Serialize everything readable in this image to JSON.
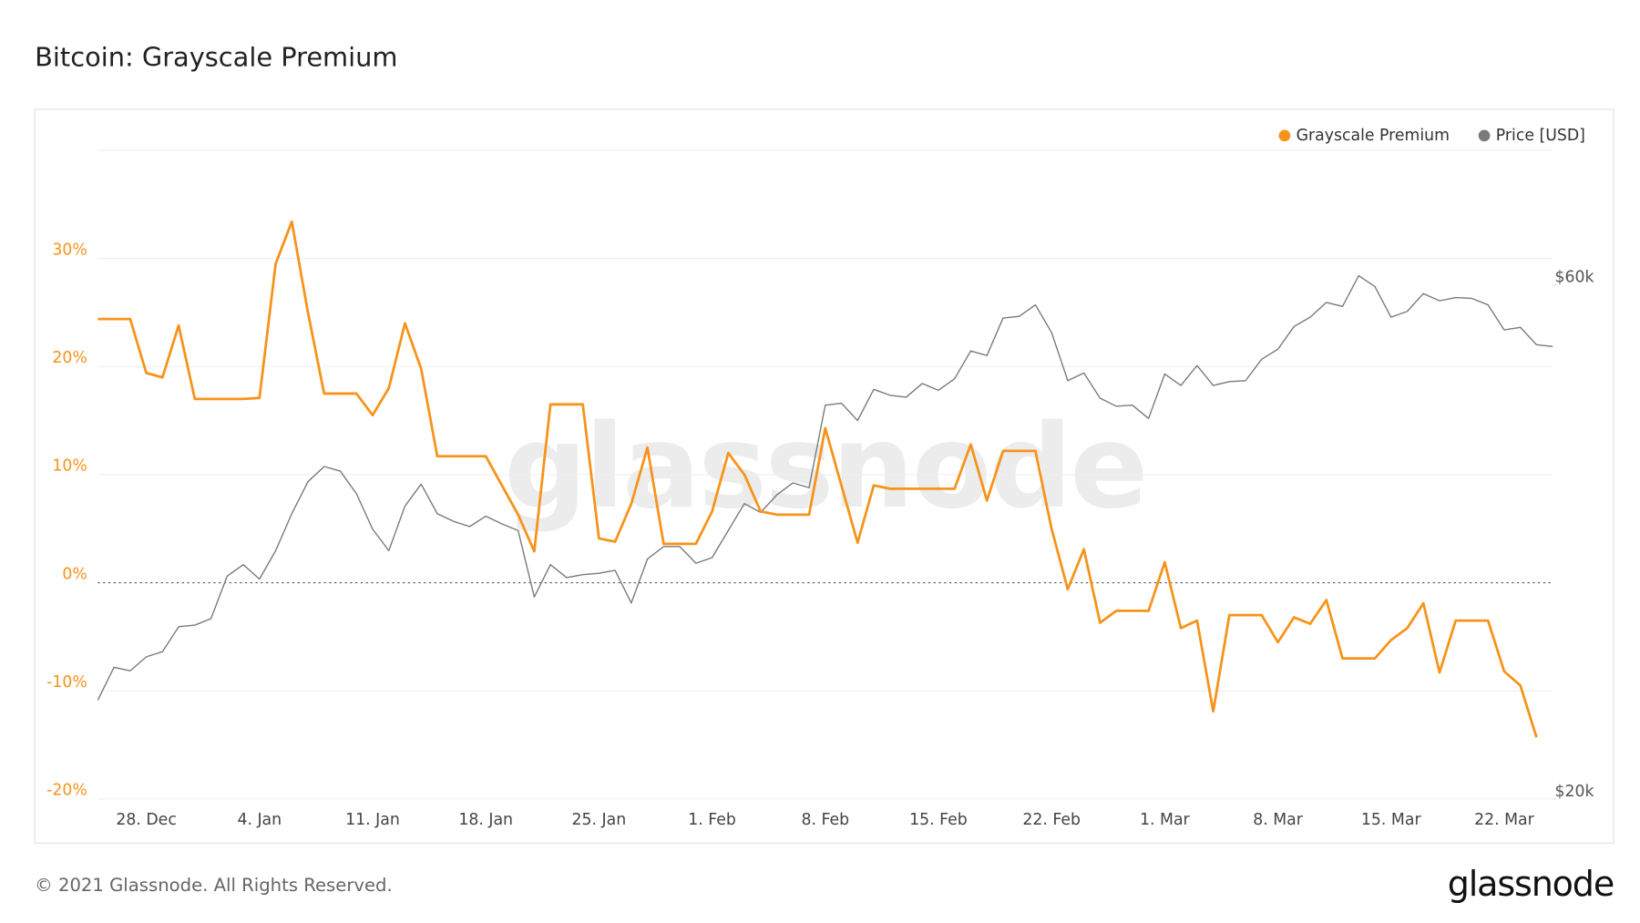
{
  "chart_data": {
    "type": "line",
    "title": "Bitcoin: Grayscale Premium",
    "watermark": "glassnode",
    "footer": "© 2021 Glassnode. All Rights Reserved.",
    "logo": "glassnode",
    "categories": [
      null,
      null,
      null,
      "28. Dec",
      null,
      null,
      null,
      null,
      null,
      null,
      "4. Jan",
      null,
      null,
      null,
      null,
      null,
      null,
      "11. Jan",
      null,
      null,
      null,
      null,
      null,
      null,
      "18. Jan",
      null,
      null,
      null,
      null,
      null,
      null,
      "25. Jan",
      null,
      null,
      null,
      null,
      null,
      null,
      "1. Feb",
      null,
      null,
      null,
      null,
      null,
      null,
      "8. Feb",
      null,
      null,
      null,
      null,
      null,
      null,
      "15. Feb",
      null,
      null,
      null,
      null,
      null,
      null,
      "22. Feb",
      null,
      null,
      null,
      null,
      null,
      null,
      "1. Mar",
      null,
      null,
      null,
      null,
      null,
      null,
      "8. Mar",
      null,
      null,
      null,
      null,
      null,
      null,
      "15. Mar",
      null,
      null,
      null,
      null,
      null,
      null,
      "22. Mar",
      null,
      null,
      null
    ],
    "series": [
      {
        "name": "Grayscale Premium",
        "color": "#f7931a",
        "values": [
          24.4,
          24.4,
          24.4,
          19.4,
          19.0,
          23.8,
          17.0,
          17.0,
          17.0,
          17.0,
          17.1,
          29.5,
          33.4,
          25.0,
          17.5,
          17.5,
          17.5,
          15.5,
          18.0,
          24.0,
          19.8,
          11.7,
          11.7,
          11.7,
          11.7,
          9.0,
          6.3,
          2.9,
          16.5,
          16.5,
          16.5,
          4.1,
          3.8,
          7.3,
          12.5,
          3.6,
          3.6,
          3.6,
          6.6,
          12.0,
          10.0,
          6.6,
          6.3,
          6.3,
          6.3,
          14.3,
          9.0,
          3.7,
          9.0,
          8.7,
          8.7,
          8.7,
          8.7,
          8.7,
          12.8,
          7.6,
          12.2,
          12.2,
          12.2,
          5.0,
          -0.6,
          3.1,
          -3.7,
          -2.6,
          -2.6,
          -2.6,
          1.9,
          -4.2,
          -3.5,
          -11.9,
          -3.0,
          -3.0,
          -3.0,
          -5.5,
          -3.2,
          -3.8,
          -1.6,
          -7.0,
          -7.0,
          -7.0,
          -5.3,
          -4.2,
          -1.9,
          -8.3,
          -3.5,
          -3.5,
          -3.5,
          -8.2,
          -9.5,
          -14.3,
          null
        ]
      },
      {
        "name": "Price [USD]",
        "color": "#7a7a7a",
        "axis": "y2",
        "values": [
          24700,
          26500,
          26300,
          27100,
          27400,
          28900,
          29000,
          29400,
          32200,
          33000,
          32000,
          34000,
          36800,
          39400,
          40700,
          40300,
          38400,
          35600,
          34000,
          37400,
          39200,
          36800,
          36200,
          35800,
          36600,
          36000,
          35500,
          30800,
          33000,
          32100,
          32300,
          32400,
          32600,
          30400,
          33400,
          34300,
          34300,
          33100,
          33500,
          35500,
          37600,
          36900,
          38300,
          39300,
          38900,
          46400,
          46600,
          44900,
          48000,
          47400,
          47200,
          48600,
          47900,
          49100,
          52100,
          51600,
          55900,
          56100,
          57500,
          54200,
          48900,
          49700,
          47100,
          46300,
          46400,
          45100,
          49600,
          48400,
          50500,
          48400,
          48800,
          48900,
          51200,
          52300,
          54900,
          56000,
          57800,
          57300,
          61200,
          59800,
          56000,
          56700,
          58900,
          58000,
          58400,
          58300,
          57500,
          54500,
          54800,
          52800,
          52600
        ]
      }
    ],
    "ylim": [
      -20,
      40
    ],
    "yticks": [
      {
        "value": -20,
        "label": "-20%"
      },
      {
        "value": -10,
        "label": "-10%"
      },
      {
        "value": 0,
        "label": "0%"
      },
      {
        "value": 10,
        "label": "10%"
      },
      {
        "value": 20,
        "label": "20%"
      },
      {
        "value": 30,
        "label": "30%"
      }
    ],
    "y2lim": [
      20000,
      80000
    ],
    "y2ticks": [
      {
        "value": 20000,
        "label": "$20k"
      },
      {
        "value": 60000,
        "label": "$60k"
      }
    ],
    "y2log": true,
    "grid": true,
    "legend": "top-right"
  }
}
